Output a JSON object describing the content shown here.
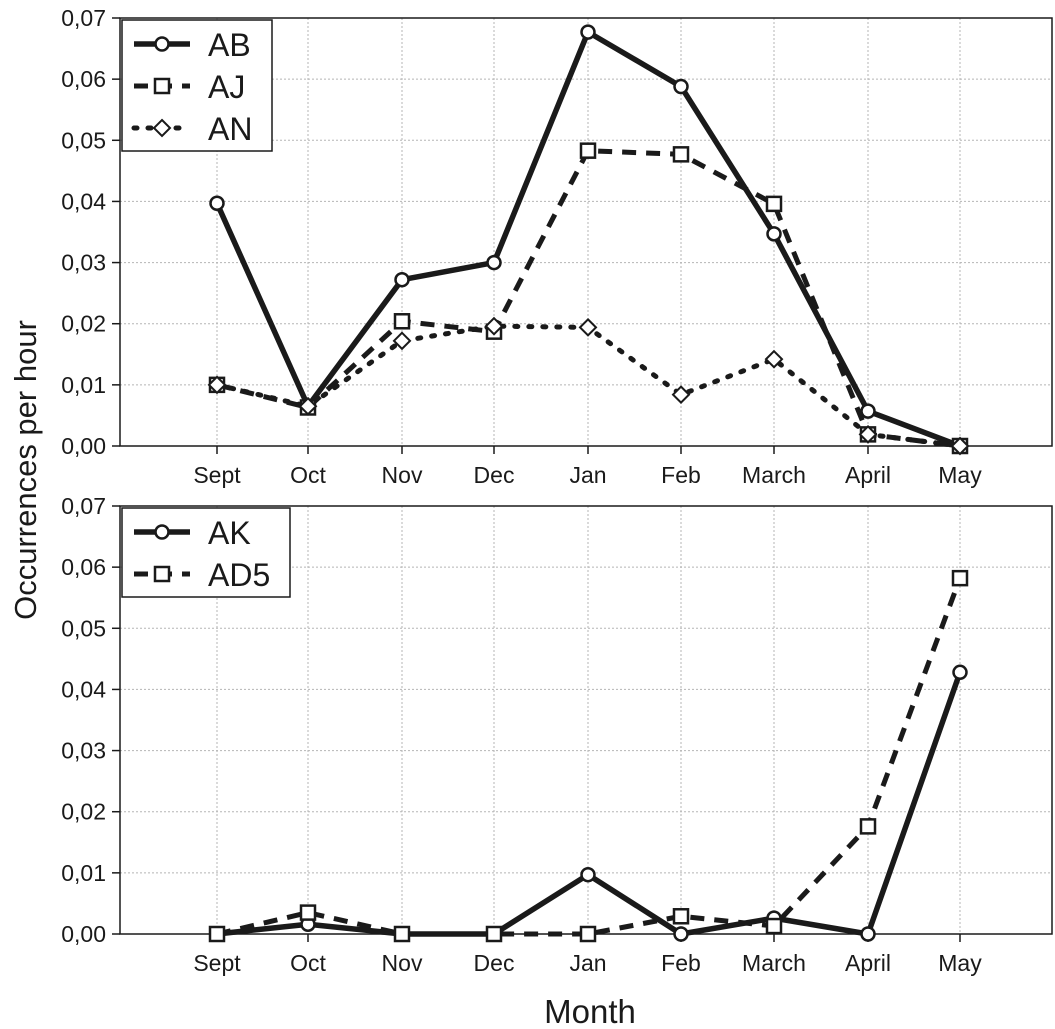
{
  "chart_data": [
    {
      "type": "line",
      "categories": [
        "Sept",
        "Oct",
        "Nov",
        "Dec",
        "Jan",
        "Feb",
        "March",
        "April",
        "May"
      ],
      "ylabel": "Occurrences per hour",
      "xlabel": "",
      "ylim": [
        0,
        0.07
      ],
      "yticks": [
        "0,00",
        "0,01",
        "0,02",
        "0,03",
        "0,04",
        "0,05",
        "0,06",
        "0,07"
      ],
      "grid": true,
      "legend_position": "top-left",
      "series": [
        {
          "name": "AB",
          "style": "solid",
          "marker": "circle",
          "values": [
            0.0397,
            0.0065,
            0.0272,
            0.03,
            0.0677,
            0.0588,
            0.0347,
            0.0057,
            0.0
          ]
        },
        {
          "name": "AJ",
          "style": "dashed",
          "marker": "square",
          "values": [
            0.01,
            0.0063,
            0.0204,
            0.0187,
            0.0483,
            0.0477,
            0.0396,
            0.0019,
            0.0
          ]
        },
        {
          "name": "AN",
          "style": "dotted",
          "marker": "diamond",
          "values": [
            0.01,
            0.0065,
            0.0172,
            0.0196,
            0.0194,
            0.0084,
            0.0142,
            0.0019,
            0.0
          ]
        }
      ]
    },
    {
      "type": "line",
      "categories": [
        "Sept",
        "Oct",
        "Nov",
        "Dec",
        "Jan",
        "Feb",
        "March",
        "April",
        "May"
      ],
      "ylabel": "",
      "xlabel": "Month",
      "ylim": [
        0,
        0.07
      ],
      "yticks": [
        "0,00",
        "0,01",
        "0,02",
        "0,03",
        "0,04",
        "0,05",
        "0,06",
        "0,07"
      ],
      "grid": true,
      "legend_position": "top-left",
      "series": [
        {
          "name": "AK",
          "style": "solid",
          "marker": "circle",
          "values": [
            0.0,
            0.0016,
            0.0,
            0.0,
            0.0097,
            0.0,
            0.0026,
            0.0,
            0.0428
          ]
        },
        {
          "name": "AD5",
          "style": "dashed",
          "marker": "square",
          "values": [
            0.0,
            0.0035,
            0.0,
            0.0,
            0.0,
            0.0029,
            0.0013,
            0.0176,
            0.0582
          ]
        }
      ]
    }
  ],
  "shared_ylabel": "Occurrences per hour",
  "shared_xlabel": "Month"
}
